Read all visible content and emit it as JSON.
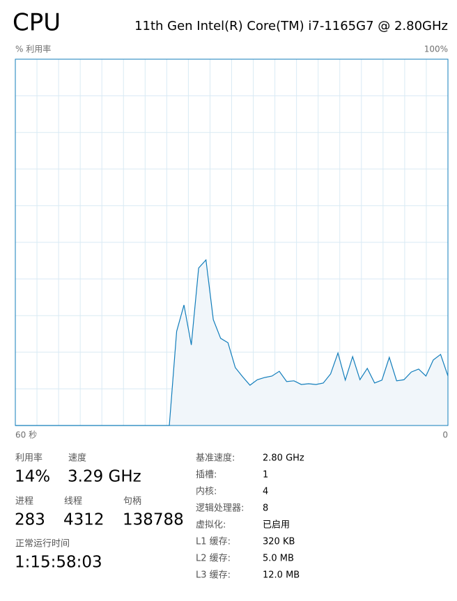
{
  "header": {
    "title": "CPU",
    "processor": "11th Gen Intel(R) Core(TM) i7-1165G7 @ 2.80GHz"
  },
  "chart_data": {
    "type": "area",
    "y_label": "% 利用率",
    "y_max_label": "100%",
    "x_start_label": "60 秒",
    "x_end_label": "0",
    "ylim": [
      0,
      100
    ],
    "color": "#117dbb",
    "fill_color": "#f1f6fa",
    "grid": true,
    "values": [
      0,
      0,
      0,
      0,
      0,
      0,
      0,
      0,
      0,
      0,
      0,
      0,
      0,
      0,
      0,
      0,
      0,
      0,
      0,
      0,
      0,
      0,
      25.7,
      32.9,
      22,
      43,
      45.2,
      28.9,
      23.8,
      22.6,
      15.8,
      13.3,
      11,
      12.5,
      13.1,
      13.5,
      14.8,
      12,
      12.2,
      11.2,
      11.4,
      11.2,
      11.6,
      14.1,
      19.8,
      12.4,
      18.8,
      12.5,
      15.6,
      11.6,
      12.4,
      18.6,
      12.2,
      12.5,
      14.6,
      15.4,
      13.5,
      17.9,
      19.4,
      13.5
    ]
  },
  "stats": [
    {
      "label": "利用率",
      "value": "14%"
    },
    {
      "label": "速度",
      "value": "3.29 GHz"
    },
    {
      "label": "进程",
      "value": "283"
    },
    {
      "label": "线程",
      "value": "4312"
    },
    {
      "label": "句柄",
      "value": "138788"
    },
    {
      "label": "正常运行时间",
      "value": "1:15:58:03"
    }
  ],
  "specs": [
    {
      "label": "基准速度:",
      "value": "2.80 GHz"
    },
    {
      "label": "插槽:",
      "value": "1"
    },
    {
      "label": "内核:",
      "value": "4"
    },
    {
      "label": "逻辑处理器:",
      "value": "8"
    },
    {
      "label": "虚拟化:",
      "value": "已启用"
    },
    {
      "label": "L1 缓存:",
      "value": "320 KB"
    },
    {
      "label": "L2 缓存:",
      "value": "5.0 MB"
    },
    {
      "label": "L3 缓存:",
      "value": "12.0 MB"
    }
  ]
}
